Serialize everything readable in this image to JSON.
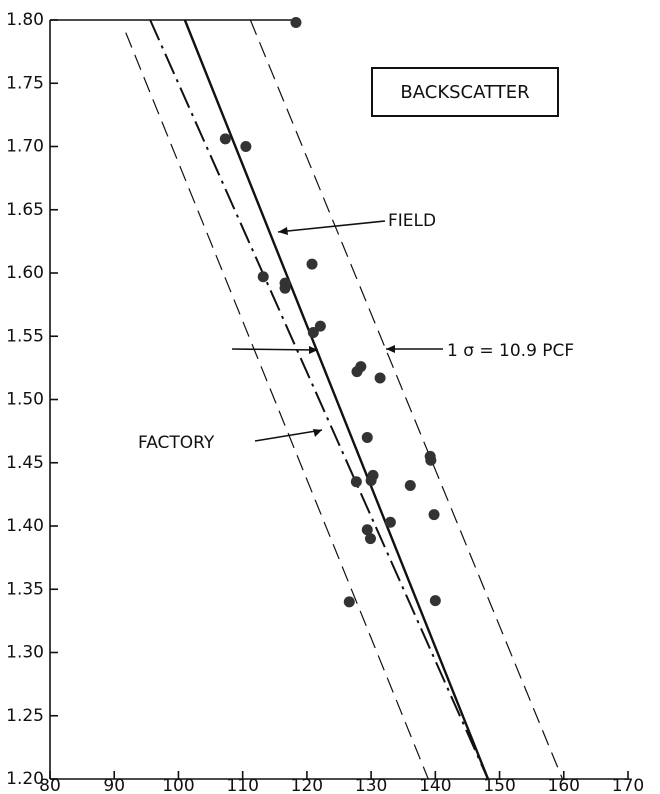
{
  "chart_data": {
    "type": "scatter",
    "annotations": {
      "box": "BACKSCATTER",
      "sigma": "1 σ = 10.9 PCF"
    },
    "xlim": [
      80,
      170
    ],
    "xticks": [
      80,
      90,
      100,
      110,
      120,
      130,
      140,
      150,
      160,
      170
    ],
    "ylim": [
      1.2,
      1.8
    ],
    "yticks": [
      {
        "value": 1.2,
        "label": "1.20"
      },
      {
        "value": 1.25,
        "label": "1.25"
      },
      {
        "value": 1.3,
        "label": "1.30"
      },
      {
        "value": 1.35,
        "label": "1.35"
      },
      {
        "value": 1.4,
        "label": "1.40"
      },
      {
        "value": 1.45,
        "label": "1.45"
      },
      {
        "value": 1.5,
        "label": "1.50"
      },
      {
        "value": 1.55,
        "label": "1.55"
      },
      {
        "value": 1.6,
        "label": "1.60"
      },
      {
        "value": 1.65,
        "label": "1.65"
      },
      {
        "value": 1.7,
        "label": "1.70"
      },
      {
        "value": 1.75,
        "label": "1.75"
      },
      {
        "value": 1.8,
        "label": "1.80"
      }
    ],
    "points": {
      "color": "#333333",
      "x": [
        118.3,
        107.3,
        110.5,
        113.2,
        116.6,
        116.6,
        120.8,
        121.0,
        122.1,
        127.8,
        128.4,
        131.4,
        129.4,
        127.7,
        130.0,
        130.3,
        136.1,
        139.2,
        139.3,
        133.0,
        139.8,
        129.4,
        129.9,
        126.6,
        140.0
      ],
      "y": [
        1.798,
        1.706,
        1.7,
        1.597,
        1.592,
        1.588,
        1.607,
        1.553,
        1.558,
        1.522,
        1.526,
        1.517,
        1.47,
        1.435,
        1.436,
        1.44,
        1.432,
        1.455,
        1.452,
        1.403,
        1.409,
        1.397,
        1.39,
        1.34,
        1.341
      ]
    },
    "series": [
      {
        "name": "FIELD",
        "style": "solid",
        "x": [
          101.0,
          148.2
        ],
        "y": [
          1.8,
          1.2
        ]
      },
      {
        "name": "FACTORY",
        "style": "dashdot",
        "x": [
          95.6,
          148.2
        ],
        "y": [
          1.8,
          1.2
        ]
      }
    ],
    "sigma_lines": [
      {
        "style": "dashed",
        "x": [
          91.8,
          138.9
        ],
        "y": [
          1.79,
          1.2
        ]
      },
      {
        "style": "dashed",
        "x": [
          111.2,
          159.8
        ],
        "y": [
          1.8,
          1.2
        ]
      }
    ]
  }
}
